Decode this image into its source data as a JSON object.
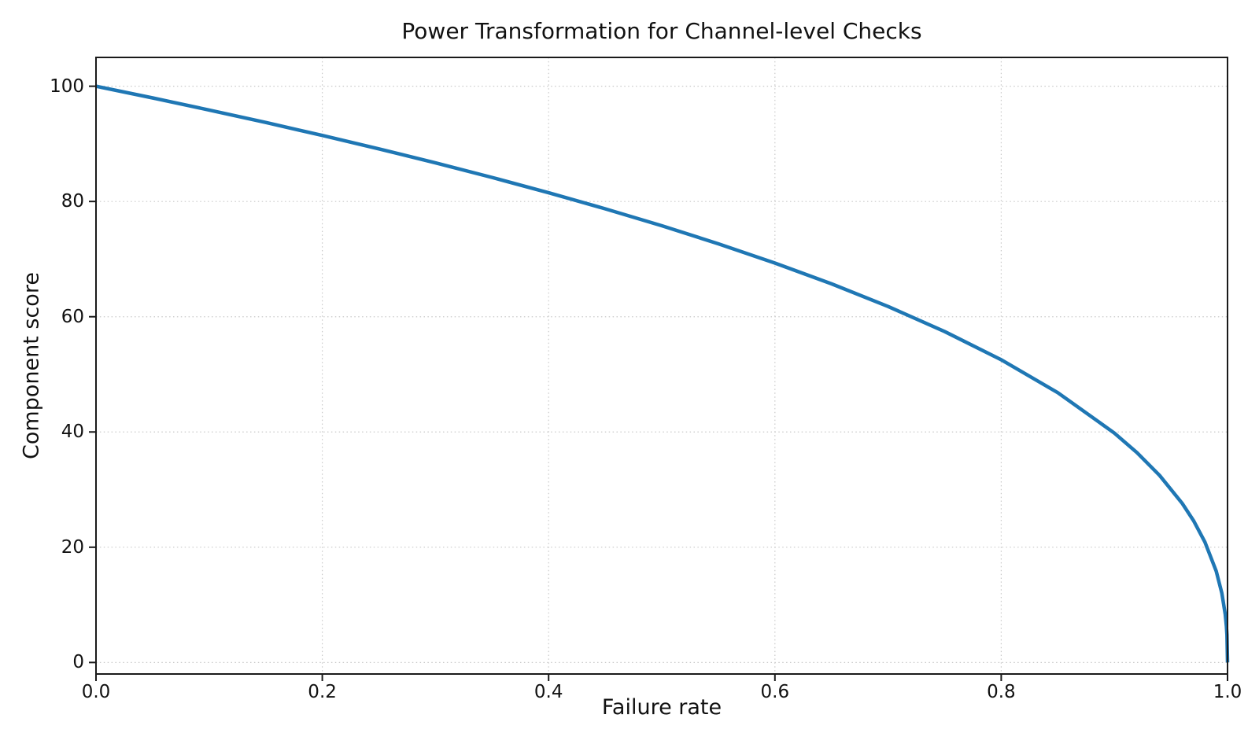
{
  "chart_data": {
    "type": "line",
    "title": "Power Transformation for Channel-level Checks",
    "xlabel": "Failure rate",
    "ylabel": "Component score",
    "xlim": [
      0.0,
      1.0
    ],
    "ylim": [
      -2,
      105
    ],
    "xticks": [
      {
        "value": 0.0,
        "label": "0.0"
      },
      {
        "value": 0.2,
        "label": "0.2"
      },
      {
        "value": 0.4,
        "label": "0.4"
      },
      {
        "value": 0.6,
        "label": "0.6"
      },
      {
        "value": 0.8,
        "label": "0.8"
      },
      {
        "value": 1.0,
        "label": "1.0"
      }
    ],
    "yticks": [
      {
        "value": 0,
        "label": "0"
      },
      {
        "value": 20,
        "label": "20"
      },
      {
        "value": 40,
        "label": "40"
      },
      {
        "value": 60,
        "label": "60"
      },
      {
        "value": 80,
        "label": "80"
      },
      {
        "value": 100,
        "label": "100"
      }
    ],
    "grid": {
      "visible": true,
      "style": "dotted",
      "color": "#c9c9c9"
    },
    "legend": "none",
    "axis_color": "#1a1a1a",
    "series": [
      {
        "color": "#1f77b4",
        "line_width": 4.5,
        "formula_estimate": "y = 100 * (1 - x)^0.4",
        "points": [
          [
            0.0,
            100.0
          ],
          [
            0.05,
            97.97
          ],
          [
            0.1,
            95.87
          ],
          [
            0.15,
            93.71
          ],
          [
            0.2,
            91.46
          ],
          [
            0.25,
            89.13
          ],
          [
            0.3,
            86.7
          ],
          [
            0.35,
            84.17
          ],
          [
            0.4,
            81.52
          ],
          [
            0.45,
            78.73
          ],
          [
            0.5,
            75.79
          ],
          [
            0.55,
            72.66
          ],
          [
            0.6,
            69.31
          ],
          [
            0.65,
            65.71
          ],
          [
            0.7,
            61.78
          ],
          [
            0.75,
            57.43
          ],
          [
            0.8,
            52.53
          ],
          [
            0.85,
            46.82
          ],
          [
            0.9,
            39.81
          ],
          [
            0.92,
            36.41
          ],
          [
            0.94,
            32.45
          ],
          [
            0.96,
            27.6
          ],
          [
            0.97,
            24.6
          ],
          [
            0.98,
            20.91
          ],
          [
            0.99,
            15.85
          ],
          [
            0.995,
            12.01
          ],
          [
            0.998,
            8.33
          ],
          [
            0.999,
            6.31
          ],
          [
            0.9995,
            4.78
          ],
          [
            1.0,
            0.0
          ]
        ]
      }
    ]
  }
}
